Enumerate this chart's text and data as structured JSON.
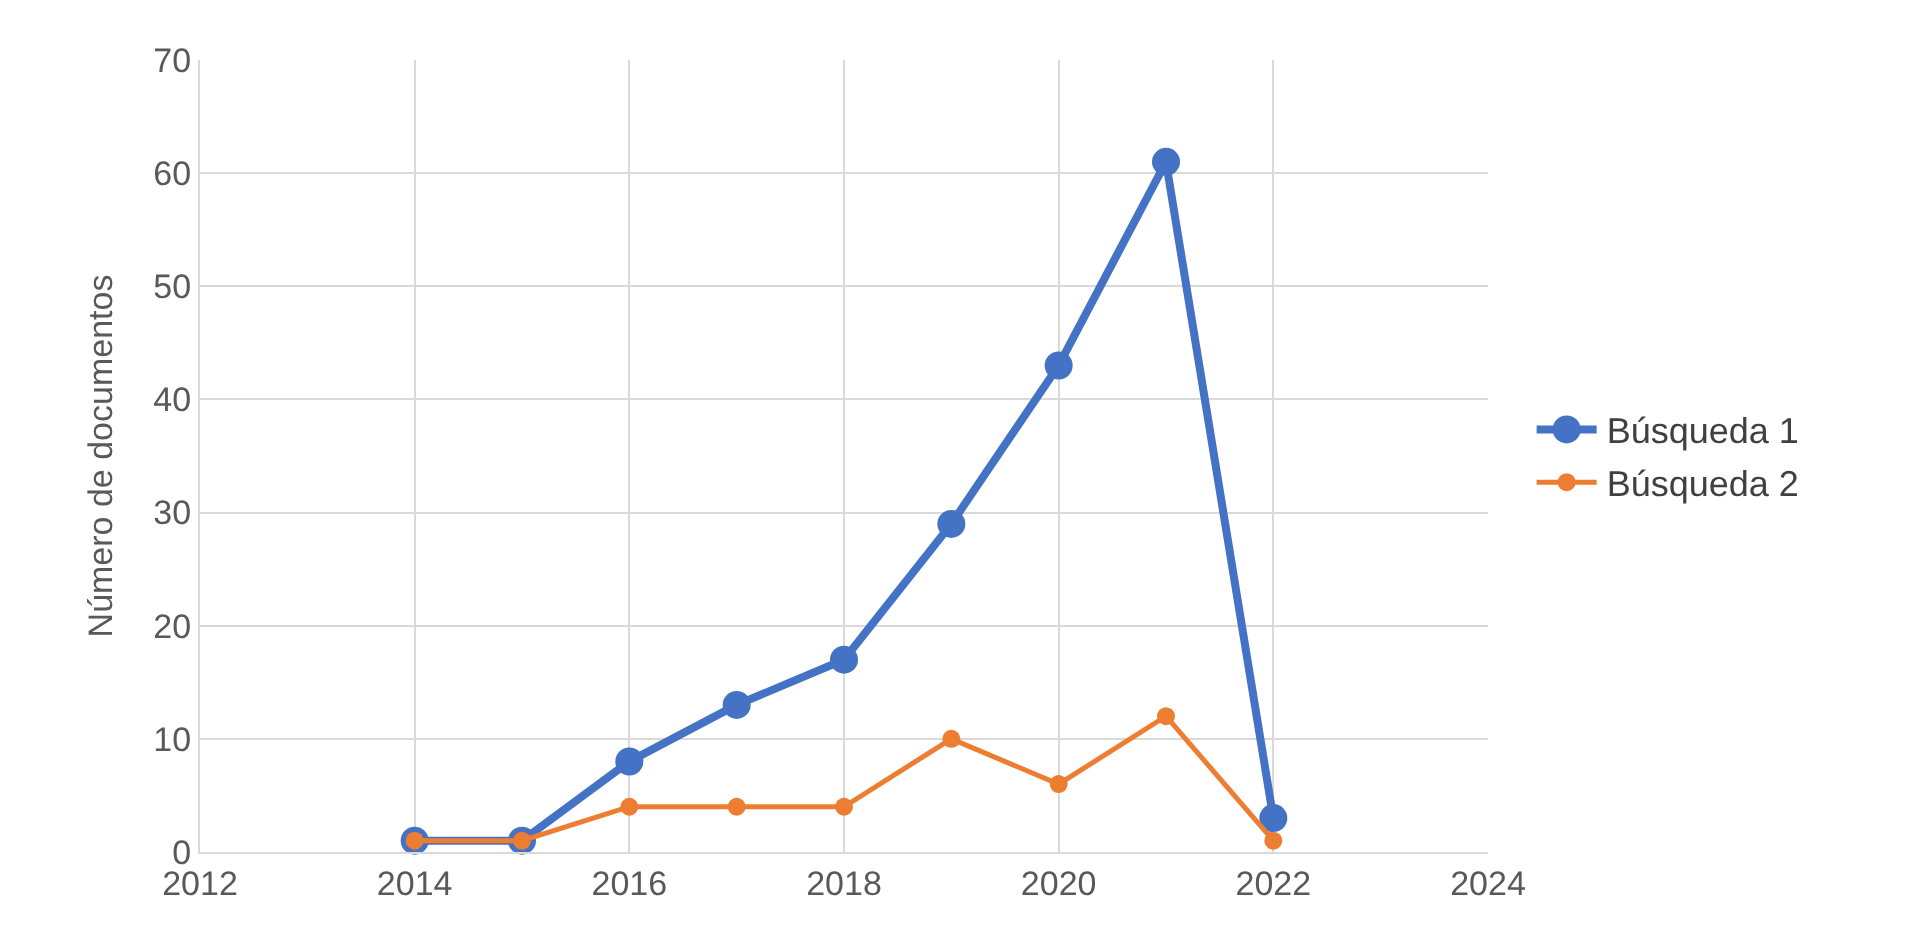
{
  "chart_data": {
    "type": "line",
    "ylabel": "Número de documentos",
    "x": [
      2014,
      2015,
      2016,
      2017,
      2018,
      2019,
      2020,
      2021,
      2022
    ],
    "series": [
      {
        "name": "Búsqueda 1",
        "color": "#4472c4",
        "values": [
          1,
          1,
          8,
          13,
          17,
          29,
          43,
          61,
          3
        ]
      },
      {
        "name": "Búsqueda 2",
        "color": "#ed7d31",
        "values": [
          1,
          1,
          4,
          4,
          4,
          10,
          6,
          12,
          1
        ]
      }
    ],
    "xlim": [
      2012,
      2024
    ],
    "xticks": [
      2012,
      2014,
      2016,
      2018,
      2020,
      2022,
      2024
    ],
    "ylim": [
      0,
      70
    ],
    "yticks": [
      0,
      10,
      20,
      30,
      40,
      50,
      60,
      70
    ],
    "grid": true,
    "legend": "right",
    "marker": "circle",
    "line_style": "solid"
  }
}
